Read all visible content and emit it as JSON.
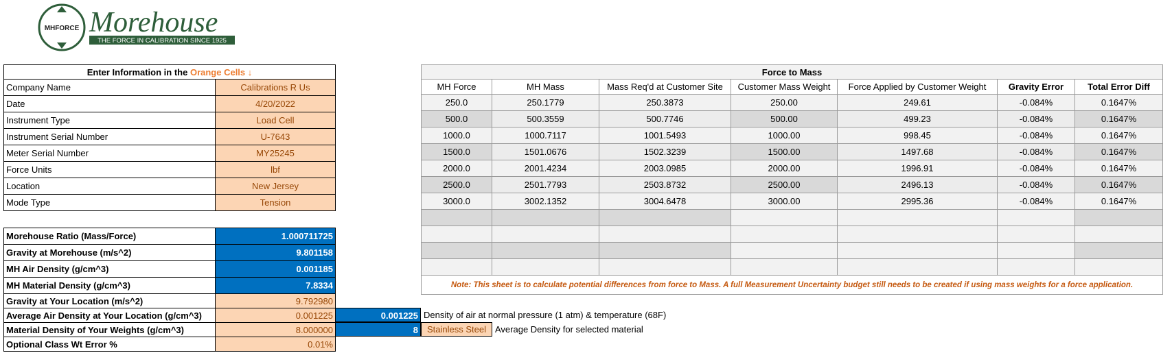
{
  "logo": {
    "badge": "MHFORCE",
    "name": "Morehouse",
    "tagline": "THE FORCE IN CALIBRATION SINCE 1925"
  },
  "input": {
    "title_prefix": "Enter Information in the ",
    "title_highlight": "Orange Cells",
    "arrow": "↓",
    "rows": [
      [
        "Company Name",
        "Calibrations R Us"
      ],
      [
        "Date",
        "4/20/2022"
      ],
      [
        "Instrument Type",
        "Load Cell"
      ],
      [
        "Instrument Serial Number",
        "U-7643"
      ],
      [
        "Meter Serial Number",
        "MY25245"
      ],
      [
        "Force Units",
        "lbf"
      ],
      [
        "Location",
        "New Jersey"
      ],
      [
        "Mode Type",
        "Tension"
      ]
    ]
  },
  "constants": {
    "rows": [
      [
        "Morehouse Ratio (Mass/Force)",
        "1.000711725"
      ],
      [
        "Gravity at  Morehouse (m/s^2)",
        "9.801158"
      ],
      [
        "MH Air Density (g/cm^3)",
        "0.001185"
      ],
      [
        "MH Material Density (g/cm^3)",
        "7.8334"
      ]
    ]
  },
  "local": {
    "rows": [
      [
        "Gravity at Your Location (m/s^2)",
        "9.792980"
      ],
      [
        "Average Air Density at Your Location (g/cm^3)",
        "0.001225"
      ],
      [
        "Material Density of Your Weights (g/cm^3)",
        "8.000000"
      ],
      [
        "Optional Class Wt Error %",
        "0.01%"
      ]
    ]
  },
  "side": {
    "air_value": "0.001225",
    "air_note": "Density of air at normal pressure (1 atm) & temperature (68F)",
    "material_value": "8",
    "material": "Stainless Steel",
    "material_note": "Average Density for selected material"
  },
  "force_to_mass": {
    "title": "Force to Mass",
    "columns": [
      "MH Force",
      "MH Mass",
      "Mass Req'd at Customer Site",
      "Customer Mass Weight",
      "Force Applied by Customer Weight",
      "Gravity Error",
      "Total Error Diff"
    ],
    "rows": [
      [
        "250.0",
        "250.1779",
        "250.3873",
        "250.00",
        "249.61",
        "-0.084%",
        "0.1647%"
      ],
      [
        "500.0",
        "500.3559",
        "500.7746",
        "500.00",
        "499.23",
        "-0.084%",
        "0.1647%"
      ],
      [
        "1000.0",
        "1000.7117",
        "1001.5493",
        "1000.00",
        "998.45",
        "-0.084%",
        "0.1647%"
      ],
      [
        "1500.0",
        "1501.0676",
        "1502.3239",
        "1500.00",
        "1497.68",
        "-0.084%",
        "0.1647%"
      ],
      [
        "2000.0",
        "2001.4234",
        "2003.0985",
        "2000.00",
        "1996.91",
        "-0.084%",
        "0.1647%"
      ],
      [
        "2500.0",
        "2501.7793",
        "2503.8732",
        "2500.00",
        "2496.13",
        "-0.084%",
        "0.1647%"
      ],
      [
        "3000.0",
        "3002.1352",
        "3004.6478",
        "3000.00",
        "2995.36",
        "-0.084%",
        "0.1647%"
      ]
    ],
    "note": "Note: This sheet is to calculate potential differences from force to Mass. A full Measurement Uncertainty budget still needs to be created if using mass weights for a force application."
  }
}
